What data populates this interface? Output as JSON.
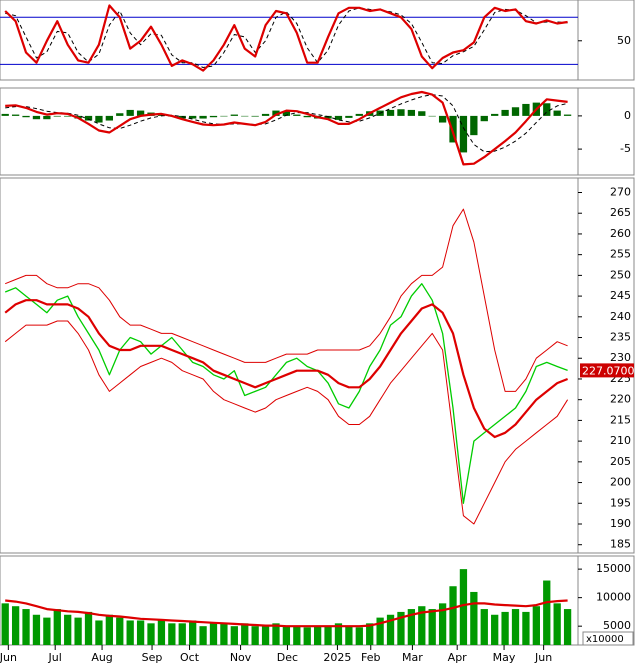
{
  "chart_data": [
    {
      "type": "combo",
      "xlim": [
        -0.5,
        55
      ],
      "ylim": [
        0,
        102
      ],
      "yticks": [
        50
      ],
      "hlines": [
        20,
        80
      ],
      "hline_color": "#0000cc",
      "series": [
        {
          "kind": "line",
          "style": "dashed",
          "color": "#000000",
          "values": [
            85,
            82,
            55,
            28,
            36,
            62,
            60,
            35,
            23,
            33,
            70,
            88,
            60,
            45,
            59,
            57,
            32,
            22,
            22,
            16,
            18,
            35,
            58,
            55,
            35,
            50,
            80,
            87,
            72,
            41,
            22,
            38,
            70,
            88,
            92,
            90,
            89,
            87,
            83,
            72,
            48,
            22,
            21,
            31,
            36,
            43,
            64,
            86,
            90,
            89,
            82,
            73,
            74,
            74,
            73
          ]
        },
        {
          "kind": "line",
          "style": "thick",
          "color": "#dd0000",
          "values": [
            88,
            75,
            35,
            22,
            50,
            75,
            45,
            25,
            22,
            45,
            95,
            80,
            40,
            50,
            68,
            45,
            18,
            25,
            20,
            12,
            25,
            45,
            70,
            40,
            30,
            70,
            88,
            85,
            60,
            22,
            22,
            55,
            85,
            92,
            92,
            88,
            90,
            85,
            80,
            65,
            30,
            15,
            28,
            35,
            38,
            48,
            80,
            92,
            88,
            90,
            75,
            72,
            76,
            72,
            74
          ]
        }
      ]
    },
    {
      "type": "combo",
      "xlim": [
        -0.5,
        55
      ],
      "ylim": [
        -8.9,
        4.2
      ],
      "yticks": [
        -5,
        0
      ],
      "series": [
        {
          "kind": "bar",
          "color": "#006600",
          "values": [
            0.3,
            0.2,
            -0.2,
            -0.5,
            -0.5,
            -0.1,
            -0.1,
            -0.4,
            -0.7,
            -1.0,
            -0.7,
            0.4,
            0.9,
            0.8,
            0.5,
            0.3,
            -0.1,
            -0.4,
            -0.4,
            -0.4,
            -0.2,
            0,
            0.2,
            0,
            -0.1,
            0.3,
            0.8,
            0.7,
            0.2,
            -0.2,
            -0.4,
            -0.4,
            -0.6,
            -0.3,
            0.3,
            0.7,
            0.8,
            0.9,
            1.0,
            0.9,
            0.7,
            0,
            -1.0,
            -4.0,
            -5.5,
            -2.9,
            -0.8,
            0.3,
            0.9,
            1.3,
            1.8,
            2.0,
            1.9,
            0.8,
            0.2
          ]
        },
        {
          "kind": "line",
          "style": "dashed",
          "color": "#000000",
          "values": [
            1.2,
            1.4,
            1.4,
            1.1,
            0.7,
            0.5,
            0.4,
            0.1,
            -0.5,
            -1.2,
            -1.8,
            -1.9,
            -1.4,
            -0.8,
            -0.3,
            0,
            0.1,
            -0.1,
            -0.5,
            -0.9,
            -1.2,
            -1.3,
            -1.2,
            -1.2,
            -1.3,
            -1.2,
            -0.6,
            0.1,
            0.5,
            0.5,
            0.2,
            -0.1,
            -0.6,
            -0.9,
            -0.8,
            -0.3,
            0.4,
            1.1,
            1.8,
            2.4,
            2.9,
            3.2,
            3.0,
            1.5,
            -1.8,
            -4.3,
            -5.4,
            -5.3,
            -4.7,
            -3.8,
            -2.6,
            -1.0,
            0.6,
            1.5,
            1.9
          ]
        },
        {
          "kind": "line",
          "style": "thick",
          "color": "#dd0000",
          "values": [
            1.5,
            1.6,
            1.2,
            0.6,
            0.2,
            0.4,
            0.3,
            -0.3,
            -1.2,
            -2.2,
            -2.5,
            -1.5,
            -0.5,
            0,
            0.2,
            0.3,
            0,
            -0.5,
            -0.9,
            -1.3,
            -1.4,
            -1.3,
            -1,
            -1.2,
            -1.4,
            -0.9,
            0.2,
            0.8,
            0.7,
            0.3,
            -0.2,
            -0.5,
            -1.2,
            -1.2,
            -0.5,
            0.4,
            1.2,
            2.0,
            2.8,
            3.3,
            3.6,
            3.2,
            2.0,
            -2.5,
            -7.3,
            -7.2,
            -6.2,
            -5.0,
            -3.8,
            -2.5,
            -0.8,
            1.0,
            2.5,
            2.3,
            2.1
          ]
        }
      ]
    },
    {
      "type": "combo",
      "xlim": [
        -0.5,
        55
      ],
      "ylim": [
        183,
        273.5
      ],
      "yticks": [
        185,
        190,
        195,
        200,
        205,
        210,
        215,
        220,
        225,
        230,
        235,
        240,
        245,
        250,
        255,
        260,
        265,
        270
      ],
      "last_price": {
        "value": 227.07,
        "label": "227.0700"
      },
      "series": [
        {
          "kind": "line",
          "style": "thin",
          "color": "#dd0000",
          "values": [
            248,
            249,
            250,
            250,
            248,
            247,
            247,
            248,
            248,
            247,
            244,
            240,
            238,
            238,
            237,
            236,
            236,
            235,
            234,
            233,
            232,
            231,
            230,
            229,
            229,
            229,
            230,
            231,
            231,
            231,
            232,
            232,
            232,
            232,
            232,
            233,
            236,
            240,
            245,
            248,
            250,
            250,
            252,
            262,
            266,
            258,
            245,
            232,
            222,
            222,
            225,
            230,
            232,
            234,
            233
          ]
        },
        {
          "kind": "line",
          "style": "thin",
          "color": "#dd0000",
          "values": [
            234,
            236,
            238,
            238,
            238,
            239,
            239,
            236,
            232,
            226,
            222,
            224,
            226,
            228,
            229,
            230,
            229,
            227,
            226,
            225,
            222,
            220,
            219,
            218,
            217,
            218,
            220,
            221,
            222,
            223,
            222,
            220,
            216,
            214,
            214,
            216,
            220,
            224,
            227,
            230,
            233,
            236,
            232,
            212,
            192,
            190,
            195,
            200,
            205,
            208,
            210,
            212,
            214,
            216,
            220
          ]
        },
        {
          "kind": "line",
          "style": "price",
          "color": "#00cc00",
          "values": [
            246,
            247,
            245,
            243,
            241,
            244,
            245,
            240,
            236,
            232,
            226,
            232,
            235,
            234,
            231,
            233,
            235,
            232,
            229,
            228,
            226,
            225,
            227,
            221,
            222,
            223,
            226,
            229,
            230,
            228,
            227,
            224,
            219,
            218,
            222,
            228,
            232,
            238,
            240,
            245,
            248,
            244,
            236,
            218,
            195,
            210,
            212,
            214,
            216,
            218,
            222,
            228,
            229,
            228,
            227.07
          ]
        },
        {
          "kind": "line",
          "style": "thick",
          "color": "#dd0000",
          "values": [
            241,
            243,
            244,
            244,
            243,
            243,
            243,
            242,
            240,
            236,
            233,
            232,
            232,
            233,
            233,
            233,
            232,
            231,
            230,
            229,
            227,
            226,
            225,
            224,
            223,
            224,
            225,
            226,
            227,
            227,
            227,
            226,
            224,
            223,
            223,
            225,
            228,
            232,
            236,
            239,
            242,
            243,
            241,
            236,
            226,
            218,
            213,
            211,
            212,
            214,
            217,
            220,
            222,
            224,
            225
          ]
        }
      ]
    },
    {
      "type": "combo",
      "xlim": [
        -0.5,
        55
      ],
      "ylim": [
        1700,
        17300
      ],
      "yticks": [
        5000,
        10000,
        15000
      ],
      "unit_label": "x10000",
      "xticks": [
        {
          "value": 0.3,
          "label": "Jun"
        },
        {
          "value": 4.8,
          "label": "Jul"
        },
        {
          "value": 9.3,
          "label": "Aug"
        },
        {
          "value": 14.1,
          "label": "Sep"
        },
        {
          "value": 17.7,
          "label": "Oct"
        },
        {
          "value": 22.6,
          "label": "Nov"
        },
        {
          "value": 27.1,
          "label": "Dec"
        },
        {
          "value": 31.9,
          "label": "2025"
        },
        {
          "value": 35.1,
          "label": "Feb"
        },
        {
          "value": 39.1,
          "label": "Mar"
        },
        {
          "value": 43.4,
          "label": "Apr"
        },
        {
          "value": 47.9,
          "label": "May"
        },
        {
          "value": 51.7,
          "label": "Jun"
        }
      ],
      "series": [
        {
          "kind": "bar",
          "color": "#009900",
          "values": [
            9000,
            8500,
            8000,
            7000,
            6500,
            8000,
            7000,
            6500,
            7500,
            6000,
            7000,
            6500,
            6000,
            6000,
            5500,
            6000,
            5500,
            5500,
            6000,
            5000,
            5500,
            5500,
            5000,
            5500,
            5000,
            5000,
            5500,
            5000,
            5000,
            4800,
            5000,
            5000,
            5500,
            5000,
            4800,
            5500,
            6500,
            7000,
            7500,
            8000,
            8500,
            8000,
            9000,
            12000,
            15000,
            11000,
            8000,
            7000,
            7500,
            8000,
            7500,
            8500,
            13000,
            9000,
            8000
          ]
        },
        {
          "kind": "line",
          "style": "thick",
          "color": "#dd0000",
          "values": [
            9500,
            9300,
            9000,
            8500,
            8000,
            7800,
            7600,
            7500,
            7300,
            7000,
            6800,
            6700,
            6500,
            6300,
            6200,
            6100,
            6000,
            5900,
            5800,
            5700,
            5600,
            5500,
            5400,
            5300,
            5200,
            5100,
            5100,
            5000,
            5000,
            5000,
            5000,
            5000,
            5000,
            5000,
            5000,
            5100,
            5500,
            6000,
            6500,
            7000,
            7400,
            7600,
            7800,
            8200,
            8700,
            9000,
            9000,
            8800,
            8700,
            8600,
            8500,
            8700,
            9200,
            9400,
            9500
          ]
        }
      ]
    }
  ]
}
